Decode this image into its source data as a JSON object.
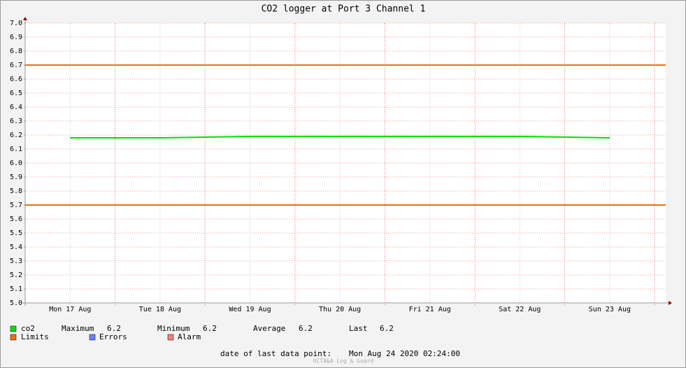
{
  "chart_data": {
    "type": "line",
    "title": "CO2 logger at Port 3 Channel 1",
    "categories": [
      "Mon 17 Aug",
      "Tue 18 Aug",
      "Wed 19 Aug",
      "Thu 20 Aug",
      "Fri 21 Aug",
      "Sat 22 Aug",
      "Sun 23 Aug"
    ],
    "series": [
      {
        "name": "co2",
        "color": "#00e000",
        "values": [
          6.18,
          6.18,
          6.19,
          6.19,
          6.19,
          6.19,
          6.18
        ]
      }
    ],
    "limits": {
      "name": "Limits",
      "color": "#f07010",
      "values": [
        6.7,
        5.7
      ]
    },
    "legend_extra": [
      {
        "name": "Errors",
        "color": "#7080ff"
      },
      {
        "name": "Alarm",
        "color": "#f08080"
      }
    ],
    "stats": [
      {
        "label": "Maximum",
        "value": 6.2
      },
      {
        "label": "Minimum",
        "value": 6.2
      },
      {
        "label": "Average",
        "value": 6.2
      },
      {
        "label": "Last",
        "value": 6.2
      }
    ],
    "ylim": [
      5.0,
      7.0
    ],
    "yticks": [
      {
        "value": 5.0,
        "label": "5.0"
      },
      5.1,
      5.2,
      5.3,
      5.4,
      5.5,
      5.6,
      5.7,
      5.8,
      5.9,
      {
        "value": 6.0,
        "label": "6.0"
      },
      6.1,
      6.2,
      6.3,
      6.4,
      6.5,
      6.6,
      6.7,
      6.8,
      6.9,
      {
        "value": 7.0,
        "label": "7.0"
      }
    ],
    "grid": true,
    "footer_label": "date of last data point:",
    "footer_date": "Mon Aug 24 2020 02:24:00",
    "credit": "OCTA&A Log & Guard"
  }
}
